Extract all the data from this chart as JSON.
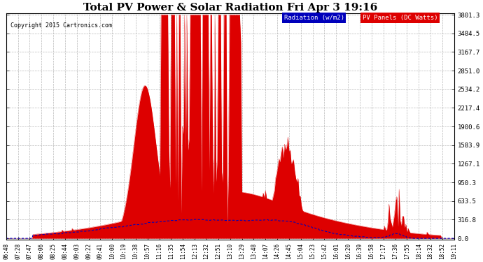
{
  "title": "Total PV Power & Solar Radiation Fri Apr 3 19:16",
  "copyright": "Copyright 2015 Cartronics.com",
  "legend_radiation": "Radiation (w/m2)",
  "legend_pv": "PV Panels (DC Watts)",
  "yticks": [
    0.0,
    316.8,
    633.5,
    950.3,
    1267.1,
    1583.9,
    1900.6,
    2217.4,
    2534.2,
    2851.0,
    3167.7,
    3484.5,
    3801.3
  ],
  "ymax": 3801.3,
  "ymin": 0.0,
  "background_color": "#ffffff",
  "plot_bg_color": "#ffffff",
  "grid_color": "#b0b0b0",
  "pv_color": "#dd0000",
  "radiation_color": "#0000bb",
  "title_fontsize": 11,
  "num_points": 400,
  "x_tick_labels": [
    "06:48",
    "07:28",
    "07:47",
    "08:06",
    "08:25",
    "08:44",
    "09:03",
    "09:22",
    "09:41",
    "10:00",
    "10:19",
    "10:38",
    "10:57",
    "11:16",
    "11:35",
    "11:54",
    "12:13",
    "12:32",
    "12:51",
    "13:10",
    "13:29",
    "13:48",
    "14:07",
    "14:26",
    "14:45",
    "15:04",
    "15:23",
    "15:42",
    "16:01",
    "16:20",
    "16:39",
    "16:58",
    "17:17",
    "17:36",
    "17:55",
    "18:14",
    "18:32",
    "18:52",
    "19:11"
  ]
}
